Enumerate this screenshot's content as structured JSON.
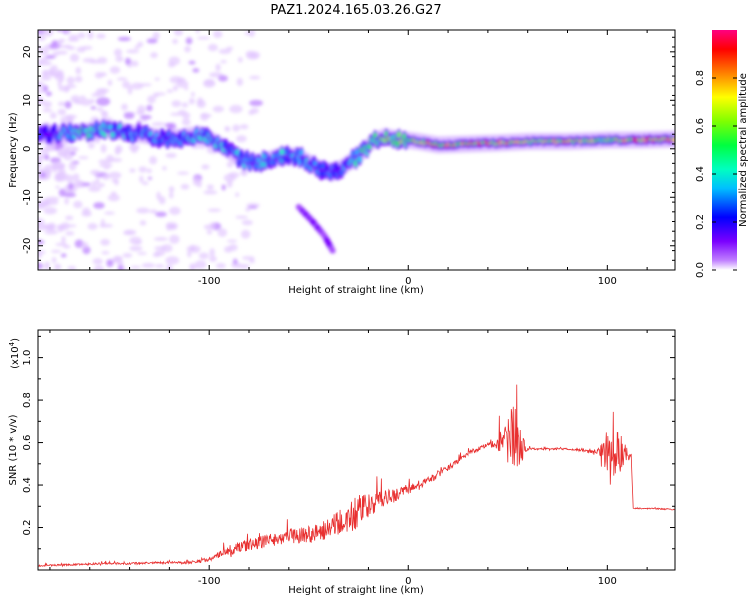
{
  "title": "PAZ1.2024.165.03.26.G27",
  "colors": {
    "snr_line": "#e83030",
    "axis": "#000000"
  },
  "chart_data": [
    {
      "type": "heatmap",
      "xlabel": "Height of straight line (km)",
      "ylabel": "Frequency (Hz)",
      "xlim": [
        -186,
        134
      ],
      "ylim": [
        -25,
        24.5
      ],
      "xticks": [
        -100,
        0,
        100
      ],
      "xtick_labels": [
        "-100",
        "0",
        "100"
      ],
      "yticks": [
        -20,
        -10,
        0,
        10,
        20
      ],
      "ytick_labels": [
        "-20",
        "-10",
        "0",
        "10",
        "20"
      ],
      "colorbar": {
        "label": "Normalized spectral amplitude",
        "range": [
          0,
          1
        ],
        "ticks": [
          0.0,
          0.2,
          0.4,
          0.6,
          0.8
        ],
        "tick_labels": [
          "0.0",
          "0.2",
          "0.4",
          "0.6",
          "0.8"
        ],
        "colormap": "rainbow"
      },
      "ridge": {
        "x": [
          -180,
          -165,
          -150,
          -135,
          -120,
          -105,
          -95,
          -85,
          -75,
          -65,
          -55,
          -45,
          -38,
          -32,
          -25,
          -18,
          -12,
          -5,
          5,
          15,
          30,
          45,
          60,
          80,
          100,
          115,
          134
        ],
        "frequency": [
          3,
          3.5,
          4,
          3,
          2,
          3,
          1,
          -2,
          -3,
          -1.5,
          -1.5,
          -4,
          -5,
          -3.5,
          -1.5,
          1.5,
          2.5,
          2,
          1.5,
          0.8,
          1,
          1.2,
          1.5,
          1.5,
          1.8,
          1.8,
          2
        ],
        "amplitude": [
          0.3,
          0.45,
          0.4,
          0.35,
          0.3,
          0.4,
          0.4,
          0.35,
          0.35,
          0.4,
          0.35,
          0.35,
          0.3,
          0.35,
          0.45,
          0.55,
          0.6,
          0.65,
          0.7,
          0.9,
          0.85,
          0.8,
          0.75,
          0.8,
          0.6,
          0.9,
          0.85
        ]
      },
      "secondary_branch": {
        "x": [
          -55,
          -48,
          -42,
          -38
        ],
        "frequency": [
          -12,
          -15,
          -18,
          -21
        ],
        "amplitude": 0.3
      }
    },
    {
      "type": "line",
      "xlabel": "Height of straight line (km)",
      "ylabel": "SNR (10 * v/v)",
      "y_scale_label": "(x10",
      "y_scale_exponent": "4",
      "y_scale": 10000,
      "xlim": [
        -186,
        134
      ],
      "ylim": [
        0,
        11300
      ],
      "xticks": [
        -100,
        0,
        100
      ],
      "xtick_labels": [
        "-100",
        "0",
        "100"
      ],
      "yticks": [
        2000,
        4000,
        6000,
        8000,
        10000
      ],
      "ytick_labels": [
        "0.2",
        "0.4",
        "0.6",
        "0.8",
        "1.0"
      ],
      "series": [
        {
          "x": [
            -186,
            -170,
            -155,
            -140,
            -125,
            -110,
            -100,
            -90,
            -80,
            -70,
            -60,
            -50,
            -40,
            -30,
            -25,
            -20,
            -15,
            -10,
            -5,
            0,
            10,
            20,
            30,
            40,
            48,
            52,
            54,
            56,
            60,
            70,
            80,
            90,
            95,
            100,
            103,
            107,
            112,
            113,
            120,
            134
          ],
          "y": [
            200,
            250,
            300,
            300,
            350,
            350,
            500,
            900,
            1200,
            1400,
            1600,
            1700,
            1900,
            2400,
            2700,
            3000,
            3200,
            3400,
            3600,
            3800,
            4200,
            4800,
            5500,
            5900,
            6100,
            6000,
            6000,
            5800,
            5700,
            5700,
            5700,
            5600,
            5550,
            5500,
            5500,
            5500,
            5400,
            2900,
            2900,
            2850
          ],
          "noise": [
            100,
            120,
            140,
            150,
            150,
            180,
            300,
            600,
            800,
            900,
            1000,
            1200,
            1500,
            2200,
            2500,
            1600,
            1300,
            1100,
            900,
            700,
            500,
            400,
            300,
            300,
            1800,
            5500,
            5000,
            2500,
            150,
            120,
            120,
            150,
            300,
            2800,
            3200,
            2500,
            150,
            80,
            80,
            80
          ]
        }
      ]
    }
  ]
}
